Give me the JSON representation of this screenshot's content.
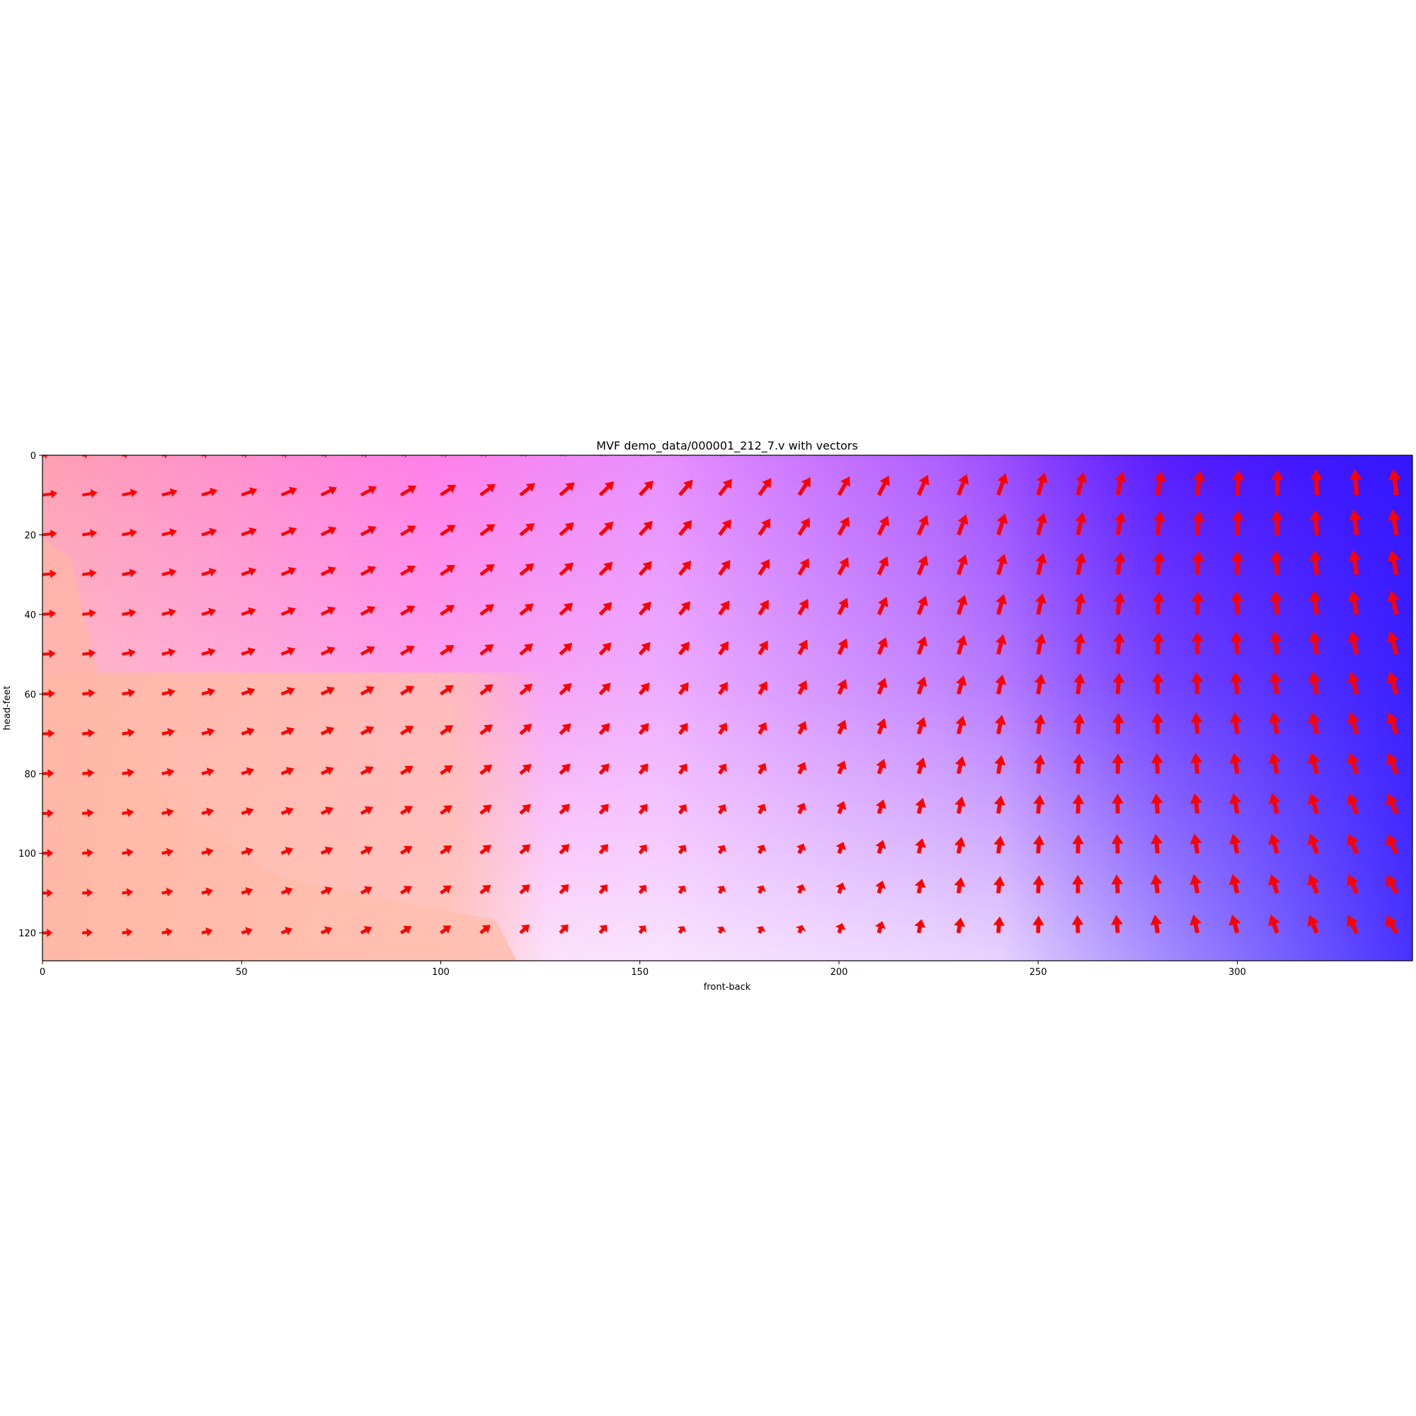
{
  "chart_data": {
    "type": "heatmap",
    "title": "MVF demo_data/000001_212_7.v with vectors",
    "xlabel": "front-back",
    "ylabel": "head-feet",
    "xlim": [
      0,
      344
    ],
    "ylim": [
      127,
      0
    ],
    "xticks": [
      0,
      50,
      100,
      150,
      200,
      250,
      300
    ],
    "yticks": [
      0,
      20,
      40,
      60,
      80,
      100,
      120
    ],
    "grid": false,
    "vector_grid": {
      "x": [
        0,
        10,
        20,
        30,
        40,
        50,
        60,
        70,
        80,
        90,
        100,
        110,
        120,
        130,
        140,
        150,
        160,
        170,
        180,
        190,
        200,
        210,
        220,
        230,
        240,
        250,
        260,
        270,
        280,
        290,
        300,
        310,
        320,
        330,
        340
      ],
      "y": [
        0,
        10,
        20,
        30,
        40,
        50,
        60,
        70,
        80,
        90,
        100,
        110,
        120
      ]
    },
    "vector_color": "#ff0000",
    "colormap_background": {
      "description_colors": [
        "#ffb4a5",
        "#ff78ff",
        "#f8e8ff",
        "#4a1cff",
        "#3a1cff"
      ]
    }
  }
}
